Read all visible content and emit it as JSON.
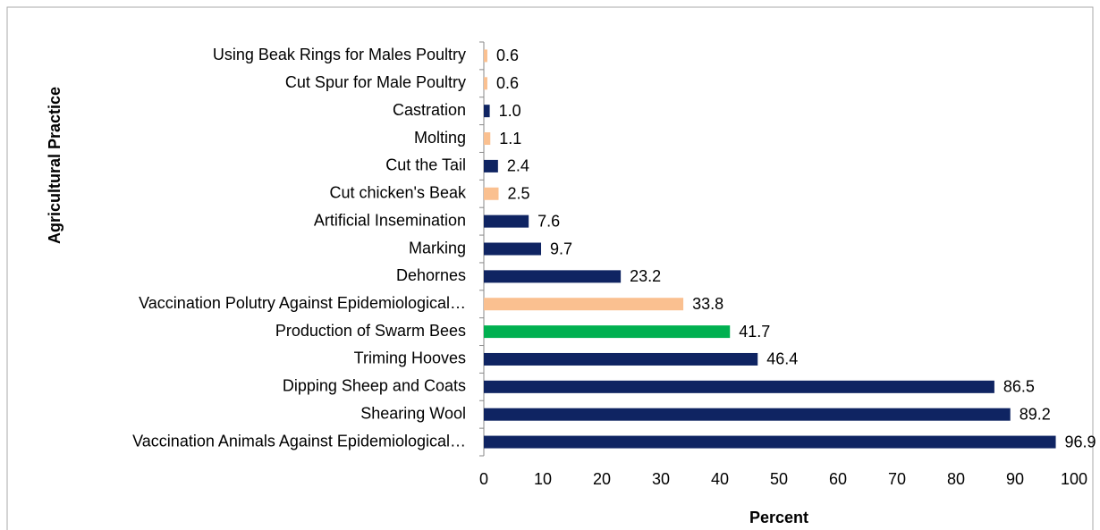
{
  "chart_data": {
    "type": "barh",
    "y_label": "Agricultural Practice",
    "x_label": "Percent",
    "categories": [
      "Using Beak Rings for Males Poultry",
      "Cut Spur for Male Poultry",
      "Castration",
      "Molting",
      "Cut the Tail",
      "Cut chicken's Beak",
      "Artificial Insemination",
      "Marking",
      "Dehornes",
      "Vaccination Polutry Against Epidemiological…",
      "Production of Swarm Bees",
      "Triming Hooves",
      "Dipping Sheep and Coats",
      "Shearing Wool",
      "Vaccination  Animals Against Epidemiological…"
    ],
    "values": [
      0.6,
      0.6,
      1,
      1.1,
      2.4,
      2.5,
      7.6,
      9.7,
      23.2,
      33.8,
      41.7,
      46.4,
      86.5,
      89.2,
      96.9
    ],
    "value_labels": [
      "0.6",
      "0.6",
      "1.0",
      "1.1",
      "2.4",
      "2.5",
      "7.6",
      "9.7",
      "23.2",
      "33.8",
      "41.7",
      "46.4",
      "86.5",
      "89.2",
      "96.9"
    ],
    "colors": [
      "#fac090",
      "#fac090",
      "#0f2462",
      "#fac090",
      "#0f2462",
      "#fac090",
      "#0f2462",
      "#0f2462",
      "#0f2462",
      "#fac090",
      "#00b050",
      "#0f2462",
      "#0f2462",
      "#0f2462",
      "#0f2462"
    ],
    "xlim": [
      0,
      100
    ],
    "xticks": [
      0,
      10,
      20,
      30,
      40,
      50,
      60,
      70,
      80,
      90,
      100
    ]
  }
}
